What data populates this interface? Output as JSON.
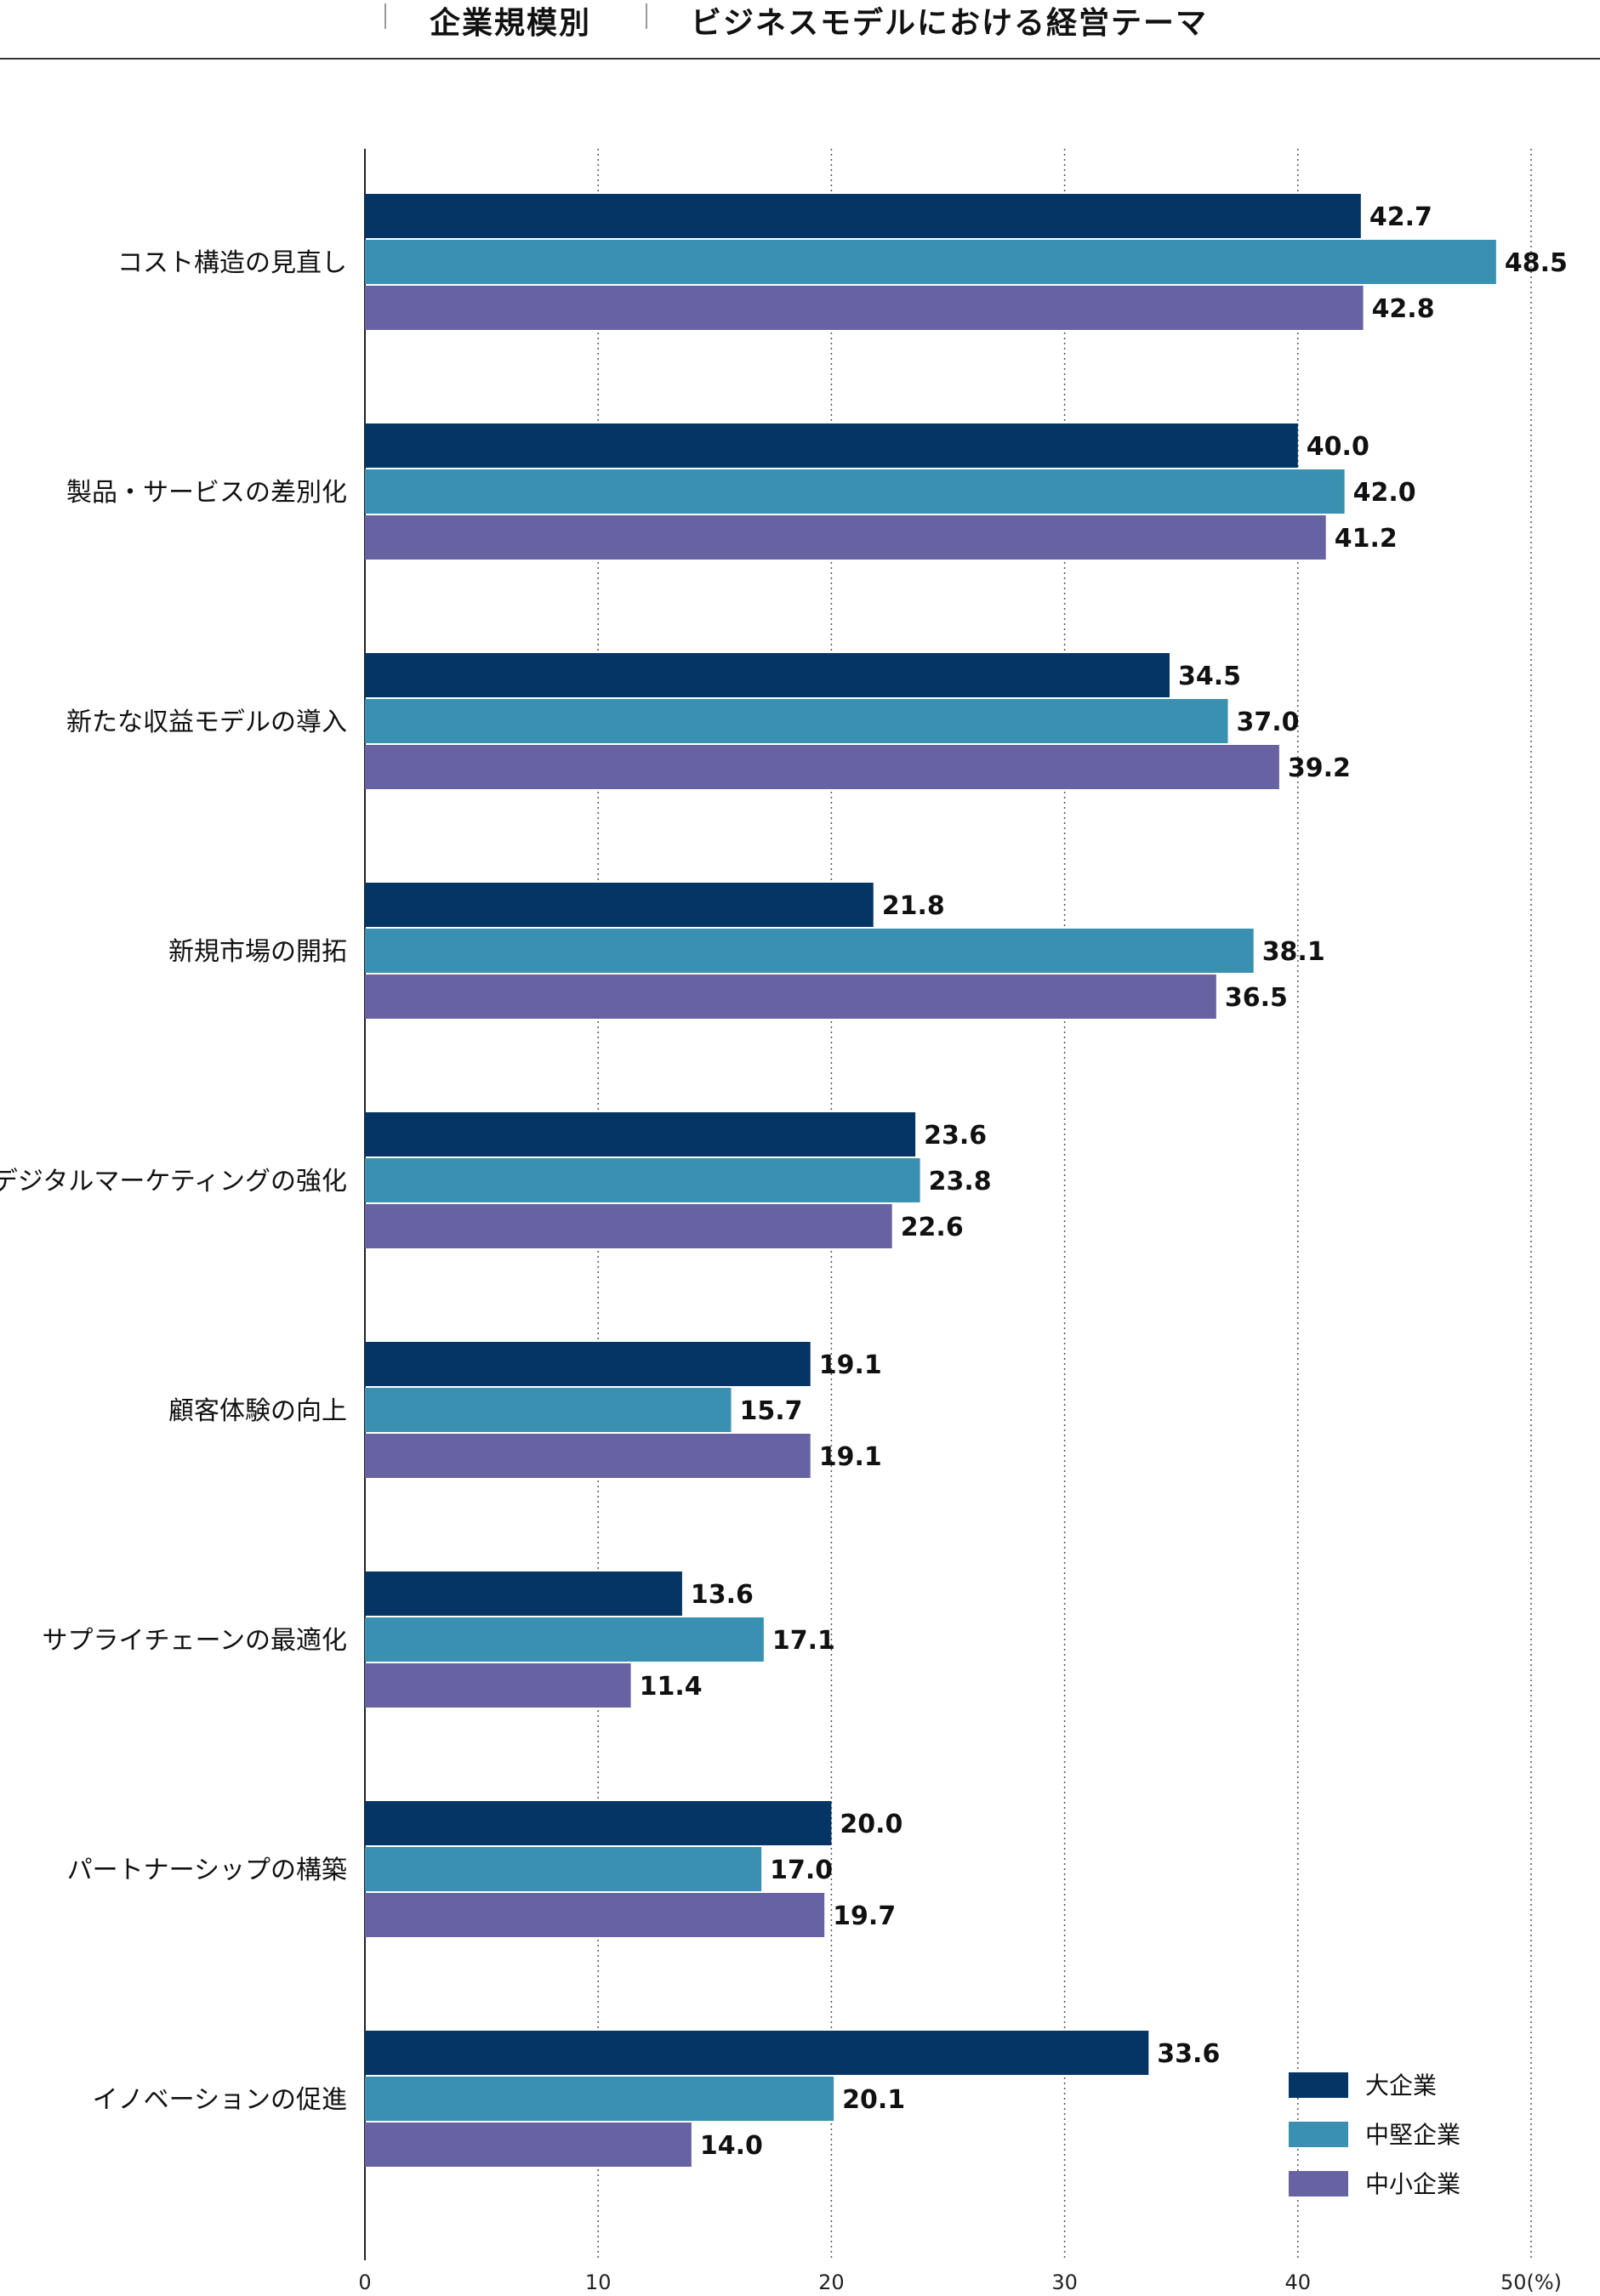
{
  "header": {
    "left_title": "企業規模別",
    "right_title": "ビジネスモデルにおける経営テーマ"
  },
  "colors": {
    "large": "#053565",
    "mid": "#3a90b0",
    "small": "#6763a3"
  },
  "chart_data": {
    "type": "bar",
    "orientation": "horizontal",
    "title": "ビジネスモデルにおける経営テーマ",
    "xlabel": "(%)",
    "xlim": [
      0,
      50
    ],
    "xticks": [
      "0",
      "10",
      "20",
      "30",
      "40",
      "50(%)"
    ],
    "grid": "vertical-dotted",
    "legend_position": "bottom-right",
    "categories": [
      "コスト構造の見直し",
      "製品・サービスの差別化",
      "新たな収益モデルの導入",
      "新規市場の開拓",
      "デジタルマーケティングの強化",
      "顧客体験の向上",
      "サプライチェーンの最適化",
      "パートナーシップの構築",
      "イノベーションの促進"
    ],
    "series": [
      {
        "name": "大企業",
        "values": [
          42.7,
          40.0,
          34.5,
          21.8,
          23.6,
          19.1,
          13.6,
          20.0,
          33.6
        ]
      },
      {
        "name": "中堅企業",
        "values": [
          48.5,
          42.0,
          37.0,
          38.1,
          23.8,
          15.7,
          17.1,
          17.0,
          20.1
        ]
      },
      {
        "name": "中小企業",
        "values": [
          42.8,
          41.2,
          39.2,
          36.5,
          22.6,
          19.1,
          11.4,
          19.7,
          14.0
        ]
      }
    ]
  }
}
